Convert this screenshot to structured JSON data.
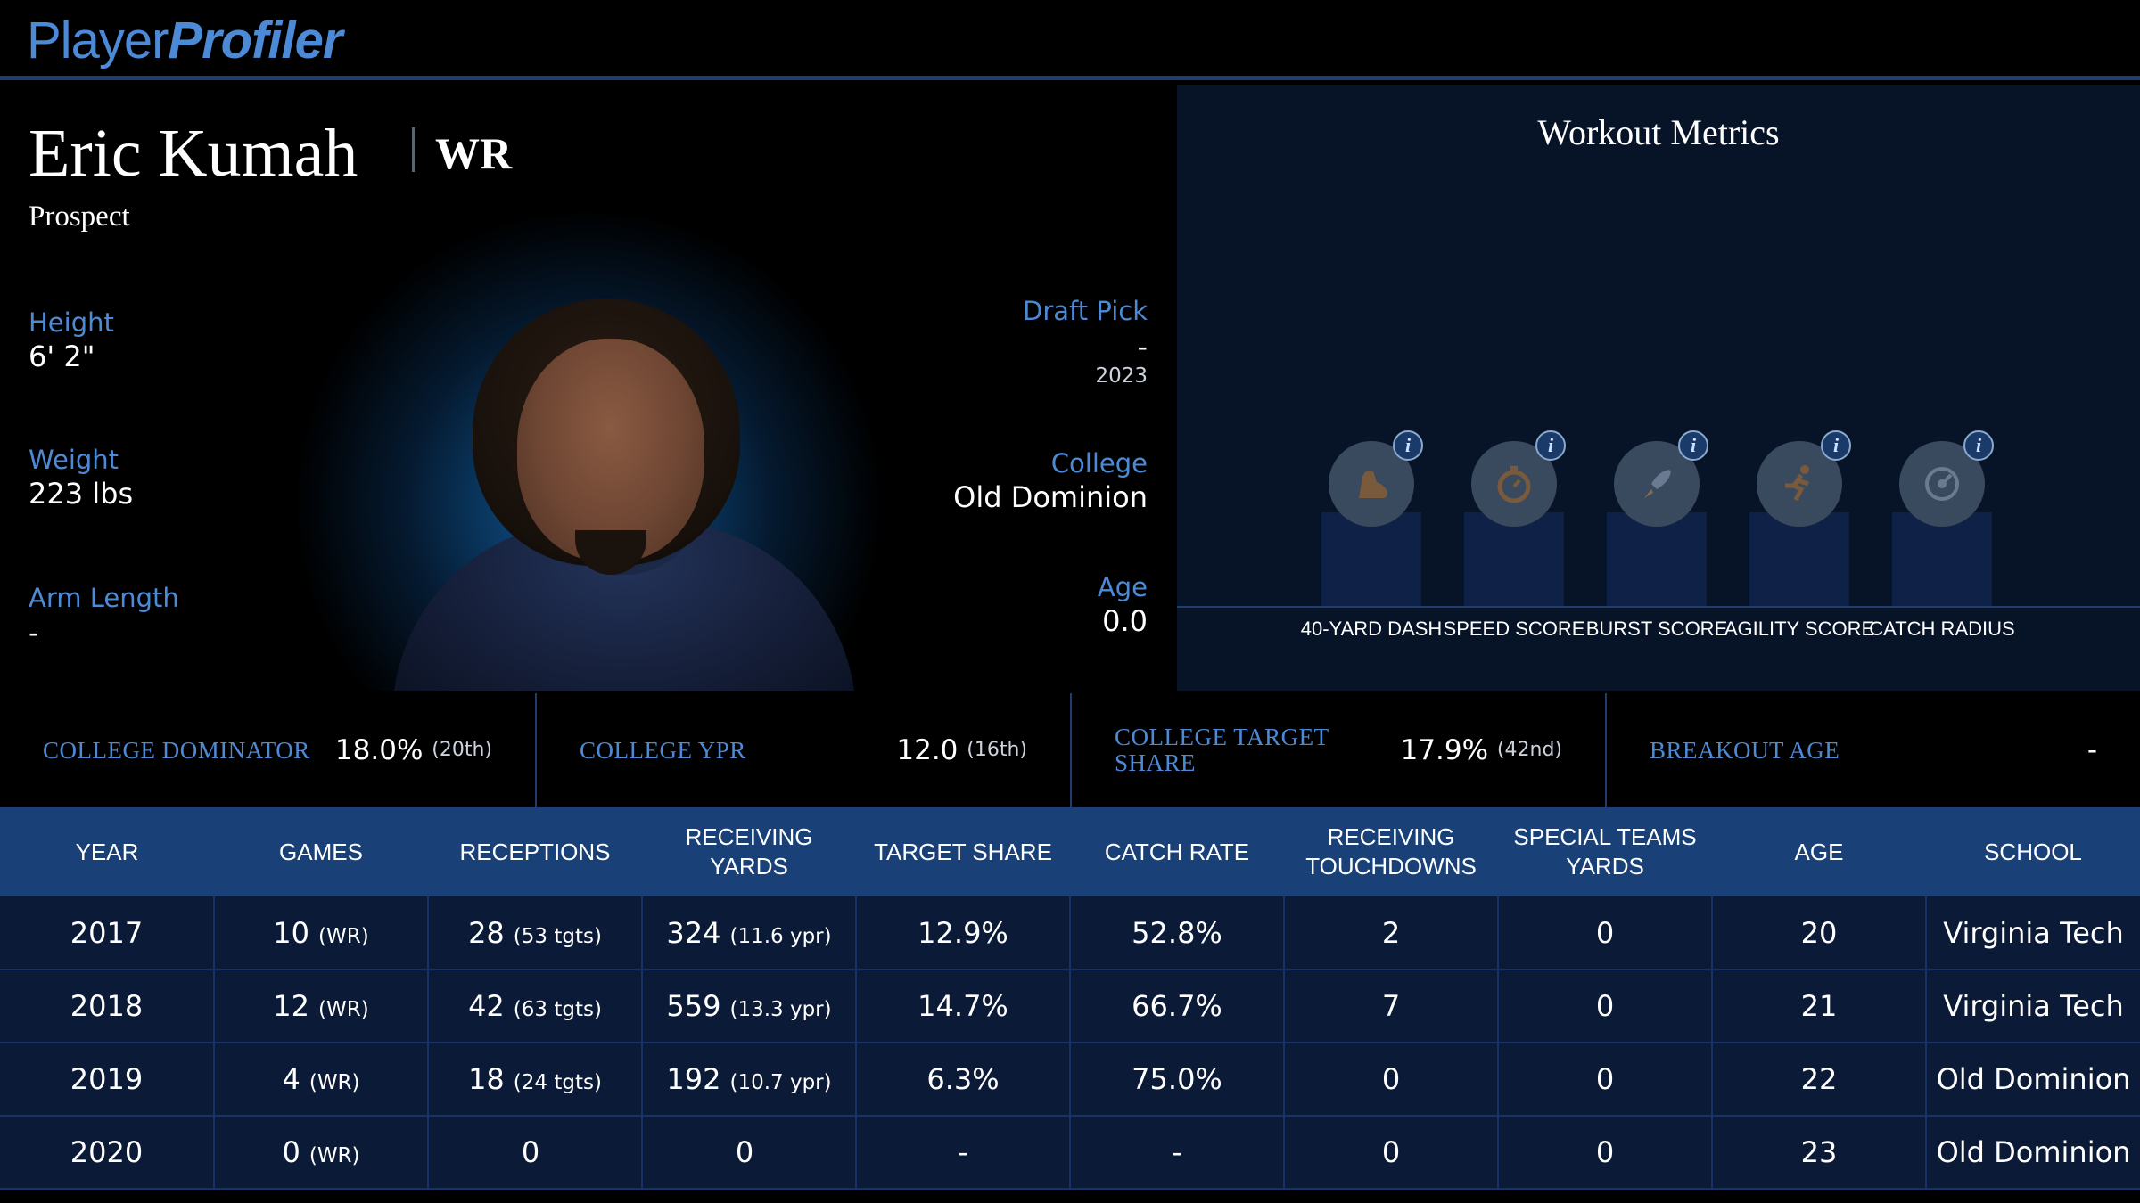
{
  "brand": {
    "part1": "Player",
    "part2": "Profiler"
  },
  "player": {
    "name": "Eric Kumah",
    "position": "WR",
    "status": "Prospect"
  },
  "bio_left": [
    {
      "label": "Height",
      "value": "6' 2\""
    },
    {
      "label": "Weight",
      "value": "223 lbs"
    },
    {
      "label": "Arm Length",
      "value": "-"
    }
  ],
  "bio_right": {
    "draft_pick": {
      "label": "Draft Pick",
      "value": "-",
      "sub": "2023"
    },
    "college": {
      "label": "College",
      "value": "Old Dominion"
    },
    "age": {
      "label": "Age",
      "value": "0.0"
    }
  },
  "workout": {
    "title": "Workout Metrics",
    "metrics": [
      {
        "label": "40-YARD DASH",
        "icon": "running-shoe-icon",
        "info": "i"
      },
      {
        "label": "SPEED SCORE",
        "icon": "stopwatch-icon",
        "info": "i"
      },
      {
        "label": "BURST SCORE",
        "icon": "rocket-icon",
        "info": "i"
      },
      {
        "label": "AGILITY SCORE",
        "icon": "runner-icon",
        "info": "i"
      },
      {
        "label": "CATCH RADIUS",
        "icon": "target-icon",
        "info": "i"
      }
    ]
  },
  "college_metrics": [
    {
      "label": "COLLEGE DOMINATOR",
      "value": "18.0%",
      "rank": "(20th)"
    },
    {
      "label": "COLLEGE YPR",
      "value": "12.0",
      "rank": "(16th)"
    },
    {
      "label": "COLLEGE TARGET SHARE",
      "value": "17.9%",
      "rank": "(42nd)"
    },
    {
      "label": "BREAKOUT AGE",
      "value": "-",
      "rank": ""
    }
  ],
  "stats": {
    "headers": [
      "YEAR",
      "GAMES",
      "RECEPTIONS",
      "RECEIVING YARDS",
      "TARGET SHARE",
      "CATCH RATE",
      "RECEIVING TOUCHDOWNS",
      "SPECIAL TEAMS YARDS",
      "AGE",
      "SCHOOL"
    ],
    "rows": [
      {
        "year": "2017",
        "games": "10",
        "games_sub": "(WR)",
        "rec": "28",
        "rec_sub": "(53 tgts)",
        "yds": "324",
        "yds_sub": "(11.6 ypr)",
        "tshare": "12.9%",
        "crate": "52.8%",
        "td": "2",
        "st": "0",
        "age": "20",
        "school": "Virginia Tech"
      },
      {
        "year": "2018",
        "games": "12",
        "games_sub": "(WR)",
        "rec": "42",
        "rec_sub": "(63 tgts)",
        "yds": "559",
        "yds_sub": "(13.3 ypr)",
        "tshare": "14.7%",
        "crate": "66.7%",
        "td": "7",
        "st": "0",
        "age": "21",
        "school": "Virginia Tech"
      },
      {
        "year": "2019",
        "games": "4",
        "games_sub": "(WR)",
        "rec": "18",
        "rec_sub": "(24 tgts)",
        "yds": "192",
        "yds_sub": "(10.7 ypr)",
        "tshare": "6.3%",
        "crate": "75.0%",
        "td": "0",
        "st": "0",
        "age": "22",
        "school": "Old Dominion"
      },
      {
        "year": "2020",
        "games": "0",
        "games_sub": "(WR)",
        "rec": "0",
        "rec_sub": "",
        "yds": "0",
        "yds_sub": "",
        "tshare": "-",
        "crate": "-",
        "td": "0",
        "st": "0",
        "age": "23",
        "school": "Old Dominion"
      }
    ]
  }
}
